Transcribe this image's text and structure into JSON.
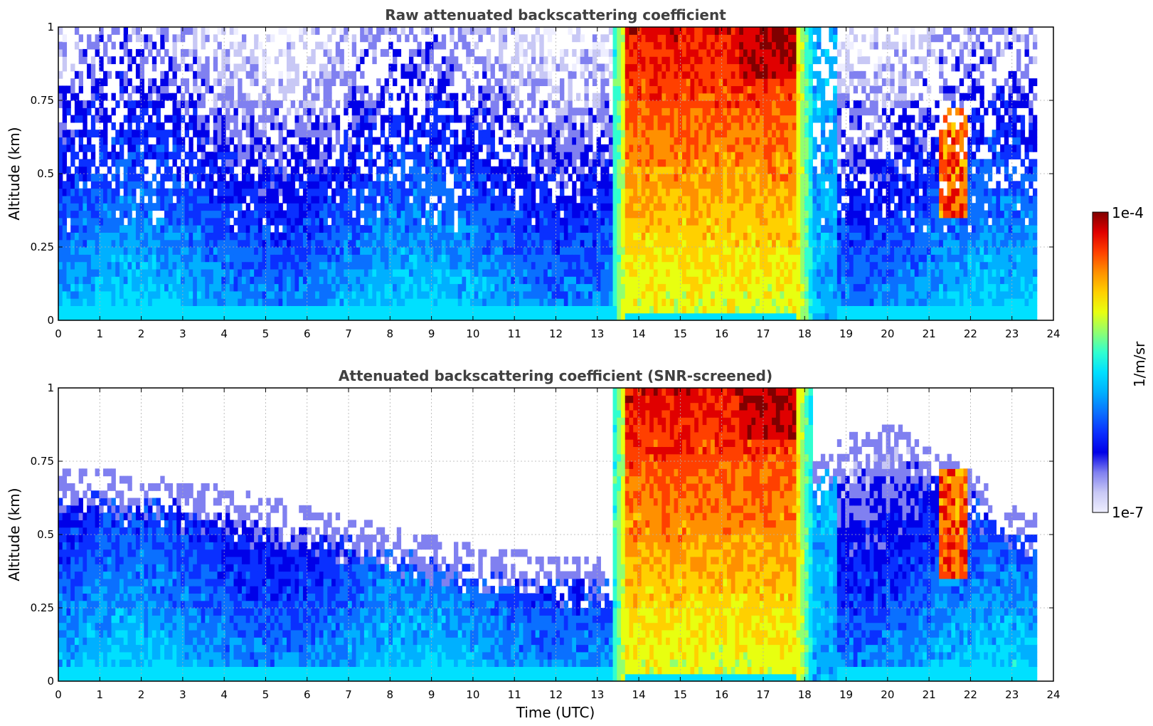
{
  "colors": {
    "jet_scale": [
      "#eeeeff",
      "#c8c8f5",
      "#8080f0",
      "#0000e8",
      "#0a30ff",
      "#0a70ff",
      "#00b0ff",
      "#00e0ff",
      "#30ffd0",
      "#90ff70",
      "#e8ff10",
      "#ffd000",
      "#ff9000",
      "#ff4000",
      "#e00000",
      "#800000"
    ],
    "grid": "#b0b0b0"
  },
  "colorbar": {
    "max_label": "1e-4",
    "min_label": "1e-7",
    "unit_label": "1/m/sr",
    "scale": "log"
  },
  "chart_data": [
    {
      "type": "heatmap",
      "title": "Raw attenuated backscattering coefficient",
      "ylabel": "Altitude (km)",
      "xlabel": "",
      "xlim": [
        0,
        24
      ],
      "ylim": [
        0,
        1
      ],
      "x_ticks": [
        "0",
        "1",
        "2",
        "3",
        "4",
        "5",
        "6",
        "7",
        "8",
        "9",
        "10",
        "11",
        "12",
        "13",
        "14",
        "15",
        "16",
        "17",
        "18",
        "19",
        "20",
        "21",
        "22",
        "23",
        "24"
      ],
      "y_ticks": [
        "0",
        "0.25",
        "0.5",
        "0.75",
        "1"
      ],
      "grid": true,
      "data_end_time": 23.6,
      "features": {
        "dense_cloud": {
          "start": 13.35,
          "end": 18.15
        },
        "plume": {
          "start": 21.2,
          "end": 21.9,
          "alt_bottom": 0.35,
          "alt_top": 0.72
        },
        "screened": false
      }
    },
    {
      "type": "heatmap",
      "title": "Attenuated backscattering coefficient (SNR-screened)",
      "ylabel": "Altitude (km)",
      "xlabel": "Time (UTC)",
      "xlim": [
        0,
        24
      ],
      "ylim": [
        0,
        1
      ],
      "x_ticks": [
        "0",
        "1",
        "2",
        "3",
        "4",
        "5",
        "6",
        "7",
        "8",
        "9",
        "10",
        "11",
        "12",
        "13",
        "14",
        "15",
        "16",
        "17",
        "18",
        "19",
        "20",
        "21",
        "22",
        "23",
        "24"
      ],
      "y_ticks": [
        "0",
        "0.25",
        "0.5",
        "0.75",
        "1"
      ],
      "grid": true,
      "data_end_time": 23.6,
      "features": {
        "dense_cloud": {
          "start": 13.35,
          "end": 18.15
        },
        "plume": {
          "start": 21.2,
          "end": 21.9,
          "alt_bottom": 0.35,
          "alt_top": 0.72
        },
        "screened": true
      }
    }
  ]
}
